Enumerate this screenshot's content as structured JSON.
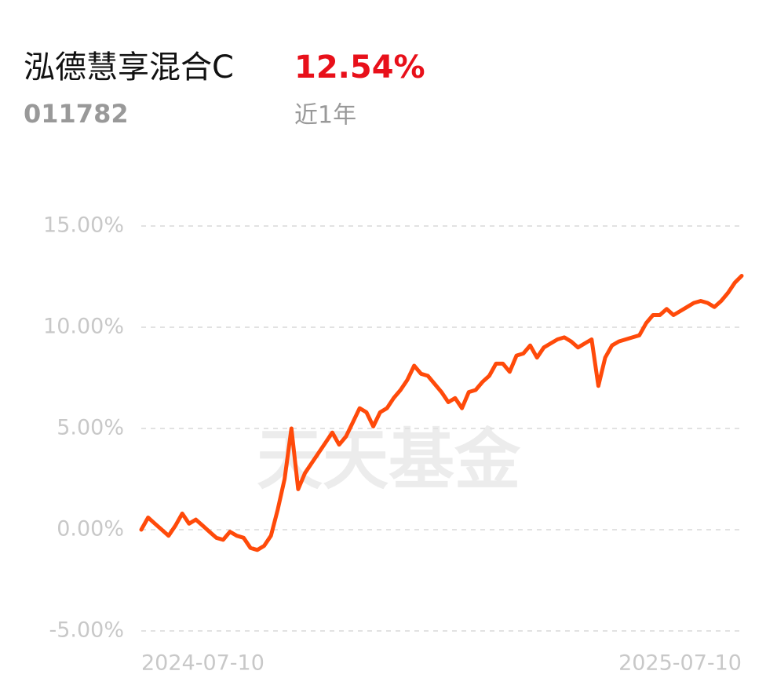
{
  "header": {
    "fund_name": "泓德慧享混合C",
    "return": "12.54%",
    "code": "011782",
    "period": "近1年"
  },
  "watermark": "天天基金",
  "chart_data": {
    "type": "line",
    "categories": [
      "2024-07-10",
      null,
      null,
      null,
      null,
      null,
      null,
      null,
      null,
      null,
      null,
      null,
      null,
      null,
      null,
      null,
      null,
      null,
      null,
      null,
      null,
      null,
      null,
      null,
      null,
      null,
      null,
      null,
      null,
      null,
      null,
      null,
      null,
      null,
      null,
      null,
      null,
      null,
      null,
      null,
      null,
      null,
      null,
      null,
      null,
      null,
      null,
      null,
      null,
      null,
      null,
      null,
      null,
      null,
      null,
      null,
      null,
      null,
      null,
      null,
      null,
      null,
      null,
      null,
      null,
      null,
      null,
      null,
      null,
      null,
      null,
      null,
      null,
      null,
      null,
      null,
      null,
      null,
      null,
      null,
      null,
      null,
      null,
      null,
      null,
      null,
      null,
      null,
      "2025-07-10"
    ],
    "series": [
      {
        "color": "#ff4a0a",
        "values": [
          0.0,
          0.6,
          0.3,
          0.0,
          -0.3,
          0.2,
          0.8,
          0.3,
          0.5,
          0.2,
          -0.1,
          -0.4,
          -0.5,
          -0.1,
          -0.3,
          -0.4,
          -0.9,
          -1.0,
          -0.8,
          -0.3,
          1.0,
          2.5,
          5.0,
          2.0,
          2.8,
          3.3,
          3.8,
          4.3,
          4.8,
          4.2,
          4.6,
          5.3,
          6.0,
          5.8,
          5.1,
          5.8,
          6.0,
          6.5,
          6.9,
          7.4,
          8.1,
          7.7,
          7.6,
          7.2,
          6.8,
          6.3,
          6.5,
          6.0,
          6.8,
          6.9,
          7.3,
          7.6,
          8.2,
          8.2,
          7.8,
          8.6,
          8.7,
          9.1,
          8.5,
          9.0,
          9.2,
          9.4,
          9.5,
          9.3,
          9.0,
          9.2,
          9.4,
          7.1,
          8.5,
          9.1,
          9.3,
          9.4,
          9.5,
          9.6,
          10.2,
          10.6,
          10.6,
          10.9,
          10.6,
          10.8,
          11.0,
          11.2,
          11.3,
          11.2,
          11.0,
          11.3,
          11.7,
          12.2,
          12.54
        ]
      }
    ],
    "ylim": [
      -5,
      15
    ],
    "yticks": [
      {
        "value": -5,
        "label": "-5.00%"
      },
      {
        "value": 0,
        "label": "0.00%"
      },
      {
        "value": 5,
        "label": "5.00%"
      },
      {
        "value": 10,
        "label": "10.00%"
      },
      {
        "value": 15,
        "label": "15.00%"
      }
    ],
    "grid": true
  }
}
